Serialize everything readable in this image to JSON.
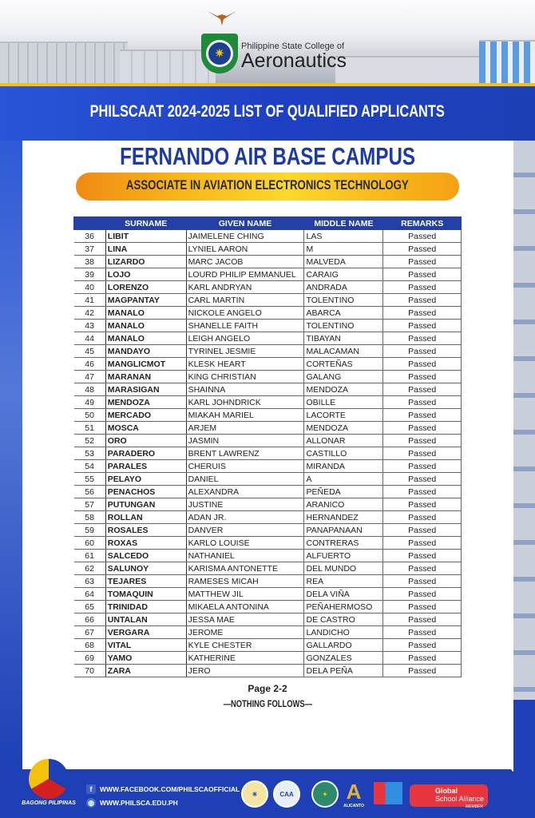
{
  "header": {
    "logo_line1": "Philippine State College of",
    "logo_line2": "Aeronautics",
    "banner_title": "PHILSCAAT 2024-2025 LIST OF QUALIFIED APPLICANTS",
    "campus": "FERNANDO AIR BASE CAMPUS",
    "program": "ASSOCIATE IN AVIATION ELECTRONICS TECHNOLOGY"
  },
  "table": {
    "columns": [
      "",
      "SURNAME",
      "GIVEN NAME",
      "MIDDLE NAME",
      "REMARKS"
    ],
    "rows": [
      [
        "36",
        "LIBIT",
        "JAIMELENE CHING",
        "LAS",
        "Passed"
      ],
      [
        "37",
        "LINA",
        "LYNIEL AARON",
        "M",
        "Passed"
      ],
      [
        "38",
        "LIZARDO",
        "MARC JACOB",
        "MALVEDA",
        "Passed"
      ],
      [
        "39",
        "LOJO",
        "LOURD PHILIP EMMANUEL",
        "CARAIG",
        "Passed"
      ],
      [
        "40",
        "LORENZO",
        "KARL ANDRYAN",
        "ANDRADA",
        "Passed"
      ],
      [
        "41",
        "MAGPANTAY",
        "CARL MARTIN",
        "TOLENTINO",
        "Passed"
      ],
      [
        "42",
        "MANALO",
        "NICKOLE ANGELO",
        "ABARCA",
        "Passed"
      ],
      [
        "43",
        "MANALO",
        "SHANELLE FAITH",
        "TOLENTINO",
        "Passed"
      ],
      [
        "44",
        "MANALO",
        "LEIGH ANGELO",
        "TIBAYAN",
        "Passed"
      ],
      [
        "45",
        "MANDAYO",
        "TYRINEL JESMIE",
        "MALACAMAN",
        "Passed"
      ],
      [
        "46",
        "MANGLICMOT",
        "KLESK HEART",
        "CORTEÑAS",
        "Passed"
      ],
      [
        "47",
        "MARANAN",
        "KING CHRISTIAN",
        "GALANG",
        "Passed"
      ],
      [
        "48",
        "MARASIGAN",
        "SHAINNA",
        "MENDOZA",
        "Passed"
      ],
      [
        "49",
        "MENDOZA",
        "KARL JOHNDRICK",
        "OBILLE",
        "Passed"
      ],
      [
        "50",
        "MERCADO",
        "MIAKAH MARIEL",
        "LACORTE",
        "Passed"
      ],
      [
        "51",
        "MOSCA",
        "ARJEM",
        "MENDOZA",
        "Passed"
      ],
      [
        "52",
        "ORO",
        "JASMIN",
        "ALLONAR",
        "Passed"
      ],
      [
        "53",
        "PARADERO",
        "BRENT LAWRENZ",
        "CASTILLO",
        "Passed"
      ],
      [
        "54",
        "PARALES",
        "CHERUIS",
        "MIRANDA",
        "Passed"
      ],
      [
        "55",
        "PELAYO",
        "DANIEL",
        "A",
        "Passed"
      ],
      [
        "56",
        "PENACHOS",
        "ALEXANDRA",
        "PEÑEDA",
        "Passed"
      ],
      [
        "57",
        "PUTUNGAN",
        "JUSTINE",
        "ARANICO",
        "Passed"
      ],
      [
        "58",
        "ROLLAN",
        "ADAN JR.",
        "HERNANDEZ",
        "Passed"
      ],
      [
        "59",
        "ROSALES",
        "DANVER",
        "PANAPANAAN",
        "Passed"
      ],
      [
        "60",
        "ROXAS",
        "KARLO LOUISE",
        "CONTRERAS",
        "Passed"
      ],
      [
        "61",
        "SALCEDO",
        "NATHANIEL",
        "ALFUERTO",
        "Passed"
      ],
      [
        "62",
        "SALUNOY",
        "KARISMA ANTONETTE",
        "DEL MUNDO",
        "Passed"
      ],
      [
        "63",
        "TEJARES",
        "RAMESES MICAH",
        "REA",
        "Passed"
      ],
      [
        "64",
        "TOMAQUIN",
        "MATTHEW JIL",
        "DELA VIÑA",
        "Passed"
      ],
      [
        "65",
        "TRINIDAD",
        "MIKAELA ANTONINA",
        "PEÑAHERMOSO",
        "Passed"
      ],
      [
        "66",
        "UNTALAN",
        "JESSA MAE",
        "DE CASTRO",
        "Passed"
      ],
      [
        "67",
        "VERGARA",
        "JEROME",
        "LANDICHO",
        "Passed"
      ],
      [
        "68",
        "VITAL",
        "KYLE CHESTER",
        "GALLARDO",
        "Passed"
      ],
      [
        "69",
        "YAMO",
        "KATHERINE",
        "GONZALES",
        "Passed"
      ],
      [
        "70",
        "ZARA",
        "JERO",
        "DELA PEÑA",
        "Passed"
      ]
    ]
  },
  "page_label": "Page 2-2",
  "nothing_follows": "—NOTHING FOLLOWS—",
  "footer": {
    "bagong": "BAGONG PILIPINAS",
    "facebook": "WWW.FACEBOOK.COM/PHILSCAOFFICIAL",
    "website": "WWW.PHILSCA.EDU.PH",
    "caa": "CAA",
    "alicanto": "ALICANTO",
    "gsa_line1": "Global",
    "gsa_line2": "School Alliance",
    "gsa_line3": "MEMBER"
  },
  "colors": {
    "blue": "#1e3fb5",
    "yellow": "#f4c20d",
    "header_blue": "#2440a8",
    "campus_blue": "#1b3aa6"
  },
  "icons": [
    "eagle-icon",
    "facebook-icon",
    "globe-icon"
  ]
}
